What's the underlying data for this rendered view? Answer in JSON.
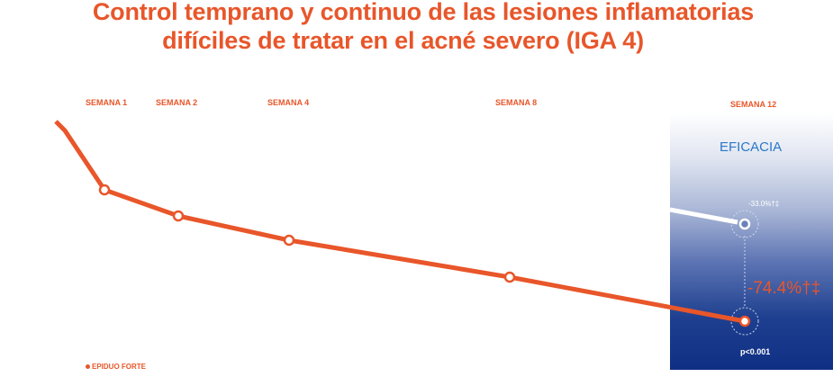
{
  "chart_data": {
    "type": "line",
    "title_line1": "Control temprano y continuo de las lesiones inflamatorias",
    "title_line2": "difíciles de tratar en el acné severo (IGA 4)",
    "categories": [
      "SEMANA 1",
      "SEMANA 2",
      "SEMANA 4",
      "SEMANA 8",
      "SEMANA 12"
    ],
    "weeks": [
      1,
      2,
      4,
      8,
      12
    ],
    "series": [
      {
        "name": "EPIDUO FORTE",
        "color": "#e8562a",
        "marker_weeks": [
          1,
          2,
          4,
          8,
          12
        ],
        "final_value_label": "-74.4%†‡"
      }
    ],
    "comparator": {
      "final_value_label": "-33.0%†‡",
      "color": "#ffffff"
    },
    "highlight_label": "EFICACIA",
    "p_value": "p<0.001",
    "colors": {
      "accent": "#e8562a",
      "panel_dark": "#0f2f84",
      "eficacia_text": "#2a78c9"
    }
  }
}
